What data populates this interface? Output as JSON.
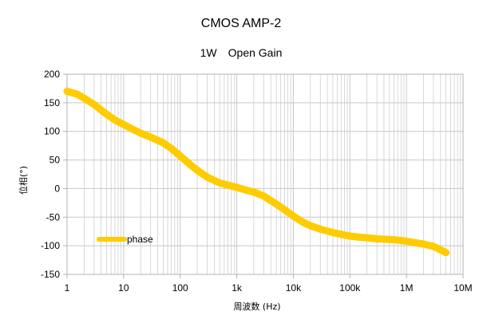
{
  "chart_data": {
    "type": "line",
    "title": "CMOS AMP-2",
    "subtitle": "1W　Open Gain",
    "xlabel": "周波数 (Hz)",
    "ylabel": "位相(°)",
    "xscale": "log",
    "xlim": [
      1,
      10000000
    ],
    "ylim": [
      -150,
      200
    ],
    "xticks": [
      {
        "value": 1,
        "label": "1"
      },
      {
        "value": 10,
        "label": "10"
      },
      {
        "value": 100,
        "label": "100"
      },
      {
        "value": 1000,
        "label": "1k"
      },
      {
        "value": 10000,
        "label": "10k"
      },
      {
        "value": 100000,
        "label": "100k"
      },
      {
        "value": 1000000,
        "label": "1M"
      },
      {
        "value": 10000000,
        "label": "10M"
      }
    ],
    "yticks": [
      200,
      150,
      100,
      50,
      0,
      -50,
      -100,
      -150
    ],
    "grid": true,
    "legend_position": "bottom-left",
    "colors": {
      "phase": "#ffcc00",
      "grid": "#c8c8c8",
      "axis": "#b3b3b3"
    },
    "series": [
      {
        "name": "phase",
        "x": [
          1,
          1.5,
          2,
          3,
          5,
          7,
          10,
          15,
          20,
          30,
          50,
          70,
          100,
          150,
          200,
          300,
          500,
          700,
          1000,
          1500,
          2000,
          3000,
          5000,
          7000,
          10000,
          15000,
          20000,
          30000,
          50000,
          70000,
          100000,
          150000,
          200000,
          300000,
          500000,
          700000,
          1000000,
          1500000,
          2000000,
          3000000,
          5000000
        ],
        "y": [
          170,
          165,
          158,
          147,
          130,
          120,
          112,
          103,
          97,
          90,
          80,
          70,
          57,
          42,
          32,
          20,
          10,
          6,
          2,
          -3,
          -6,
          -13,
          -27,
          -37,
          -48,
          -59,
          -65,
          -71,
          -77,
          -80,
          -83,
          -85,
          -86,
          -88,
          -89,
          -90,
          -92,
          -95,
          -97,
          -101,
          -112
        ]
      }
    ]
  }
}
